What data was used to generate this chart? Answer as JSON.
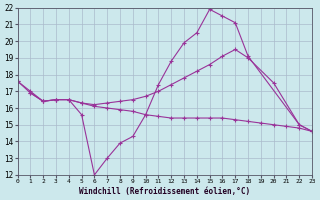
{
  "xlabel": "Windchill (Refroidissement éolien,°C)",
  "bg_color": "#cce8ec",
  "grid_color": "#aabbcc",
  "line_color": "#993399",
  "xlim": [
    0,
    23
  ],
  "ylim": [
    12,
    22
  ],
  "xticks": [
    0,
    1,
    2,
    3,
    4,
    5,
    6,
    7,
    8,
    9,
    10,
    11,
    12,
    13,
    14,
    15,
    16,
    17,
    18,
    19,
    20,
    21,
    22,
    23
  ],
  "yticks": [
    12,
    13,
    14,
    15,
    16,
    17,
    18,
    19,
    20,
    21,
    22
  ],
  "line1_x": [
    0,
    1,
    2,
    3,
    4,
    5,
    6,
    7,
    8,
    9,
    10,
    11,
    12,
    13,
    14,
    15,
    16,
    17,
    18,
    22,
    23
  ],
  "line1_y": [
    17.6,
    17.0,
    16.4,
    16.5,
    16.5,
    15.6,
    12.0,
    13.0,
    13.9,
    14.3,
    15.6,
    17.4,
    18.8,
    19.9,
    20.5,
    21.9,
    21.5,
    21.1,
    19.1,
    15.0,
    14.6
  ],
  "line2_x": [
    0,
    1,
    2,
    3,
    4,
    5,
    6,
    7,
    8,
    9,
    10,
    11,
    12,
    13,
    14,
    15,
    16,
    17,
    18,
    20,
    22,
    23
  ],
  "line2_y": [
    17.6,
    16.9,
    16.4,
    16.5,
    16.5,
    16.3,
    16.2,
    16.3,
    16.4,
    16.5,
    16.7,
    17.0,
    17.4,
    17.8,
    18.2,
    18.6,
    19.1,
    19.5,
    19.0,
    17.5,
    15.0,
    14.6
  ],
  "line3_x": [
    1,
    2,
    3,
    4,
    5,
    6,
    7,
    8,
    9,
    10,
    11,
    12,
    13,
    14,
    15,
    16,
    17,
    18,
    19,
    20,
    21,
    22,
    23
  ],
  "line3_y": [
    16.9,
    16.4,
    16.5,
    16.5,
    16.3,
    16.1,
    16.0,
    15.9,
    15.8,
    15.6,
    15.5,
    15.4,
    15.4,
    15.4,
    15.4,
    15.4,
    15.3,
    15.2,
    15.1,
    15.0,
    14.9,
    14.8,
    14.6
  ]
}
